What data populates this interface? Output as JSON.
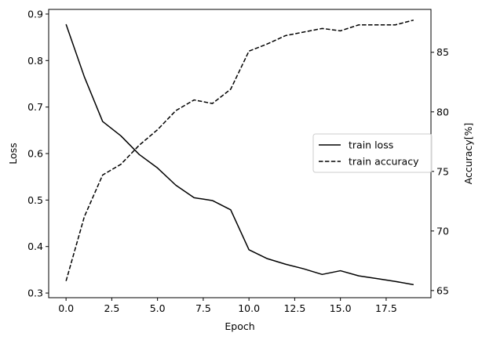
{
  "chart_data": {
    "type": "line",
    "title": "",
    "xlabel": "Epoch",
    "ylabel_left": "Loss",
    "ylabel_right": "Accuracy[%]",
    "x": [
      0,
      1,
      2,
      3,
      4,
      5,
      6,
      7,
      8,
      9,
      10,
      11,
      12,
      13,
      14,
      15,
      16,
      17,
      18,
      19
    ],
    "xlim": [
      -0.95,
      19.95
    ],
    "ylim_left": [
      0.29,
      0.91
    ],
    "ylim_right": [
      64.4,
      88.6
    ],
    "x_ticks": [
      0.0,
      2.5,
      5.0,
      7.5,
      10.0,
      12.5,
      15.0,
      17.5
    ],
    "x_tick_labels": [
      "0.0",
      "2.5",
      "5.0",
      "7.5",
      "10.0",
      "12.5",
      "15.0",
      "17.5"
    ],
    "y_left_ticks": [
      0.3,
      0.4,
      0.5,
      0.6,
      0.7,
      0.8,
      0.9
    ],
    "y_left_tick_labels": [
      "0.3",
      "0.4",
      "0.5",
      "0.6",
      "0.7",
      "0.8",
      "0.9"
    ],
    "y_right_ticks": [
      65,
      70,
      75,
      80,
      85
    ],
    "y_right_tick_labels": [
      "65",
      "70",
      "75",
      "80",
      "85"
    ],
    "grid": false,
    "legend_position": "center-right",
    "series": [
      {
        "name": "train loss",
        "axis": "left",
        "style": "solid",
        "color": "#000000",
        "values": [
          0.878,
          0.765,
          0.669,
          0.638,
          0.598,
          0.569,
          0.532,
          0.505,
          0.499,
          0.479,
          0.393,
          0.374,
          0.362,
          0.352,
          0.34,
          0.348,
          0.337,
          0.331,
          0.325,
          0.318
        ]
      },
      {
        "name": "train accuracy",
        "axis": "right",
        "style": "dashed",
        "color": "#000000",
        "values": [
          65.8,
          71.2,
          74.7,
          75.6,
          77.2,
          78.5,
          80.1,
          81.0,
          80.7,
          81.9,
          85.1,
          85.7,
          86.4,
          86.7,
          87.0,
          86.8,
          87.3,
          87.3,
          87.3,
          87.7
        ]
      }
    ]
  }
}
